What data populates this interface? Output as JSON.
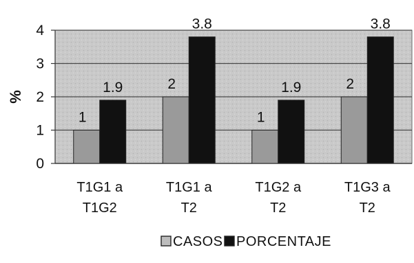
{
  "chart_data": {
    "type": "bar",
    "ylabel": "%",
    "ylim": [
      0,
      4
    ],
    "yticks": [
      0,
      1,
      2,
      3,
      4
    ],
    "grid": true,
    "legend_position": "bottom",
    "categories": [
      [
        "T1G1 a",
        "T1G2"
      ],
      [
        "T1G1 a",
        "T2"
      ],
      [
        "T1G2 a",
        "T2"
      ],
      [
        "T1G3 a",
        "T2"
      ]
    ],
    "series": [
      {
        "name": "CASOS",
        "values": [
          1,
          2,
          1,
          2
        ],
        "labels": [
          "1",
          "2",
          "1",
          "2"
        ],
        "color": "#9a9a9a"
      },
      {
        "name": "PORCENTAJE",
        "values": [
          1.9,
          3.8,
          1.9,
          3.8
        ],
        "labels": [
          "1.9",
          "3.8",
          "1.9",
          "3.8"
        ],
        "color": "#111111"
      }
    ]
  }
}
